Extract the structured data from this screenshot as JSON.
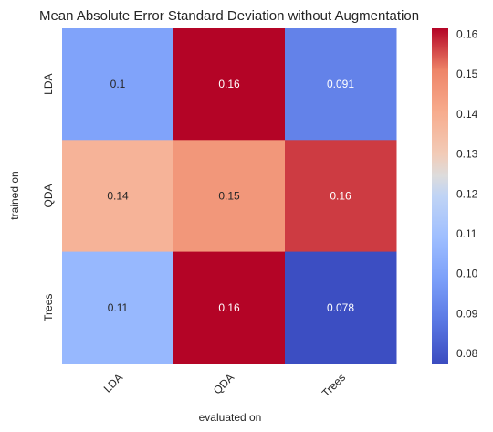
{
  "chart_data": {
    "type": "heatmap",
    "title": "Mean Absolute Error Standard Deviation without Augmentation",
    "xlabel": "evaluated on",
    "ylabel": "trained on",
    "x_categories": [
      "LDA",
      "QDA",
      "Trees"
    ],
    "y_categories": [
      "LDA",
      "QDA",
      "Trees"
    ],
    "values": [
      [
        0.1,
        0.162,
        0.091
      ],
      [
        0.138,
        0.146,
        0.157
      ],
      [
        0.107,
        0.162,
        0.078
      ]
    ],
    "annotations": [
      [
        "0.1",
        "0.16",
        "0.091"
      ],
      [
        "0.14",
        "0.15",
        "0.16"
      ],
      [
        "0.11",
        "0.16",
        "0.078"
      ]
    ],
    "colorbar": {
      "colormap": "coolwarm",
      "range": [
        0.0775,
        0.1615
      ],
      "ticks": [
        "0.08",
        "0.09",
        "0.10",
        "0.11",
        "0.12",
        "0.13",
        "0.14",
        "0.15",
        "0.16"
      ]
    }
  }
}
